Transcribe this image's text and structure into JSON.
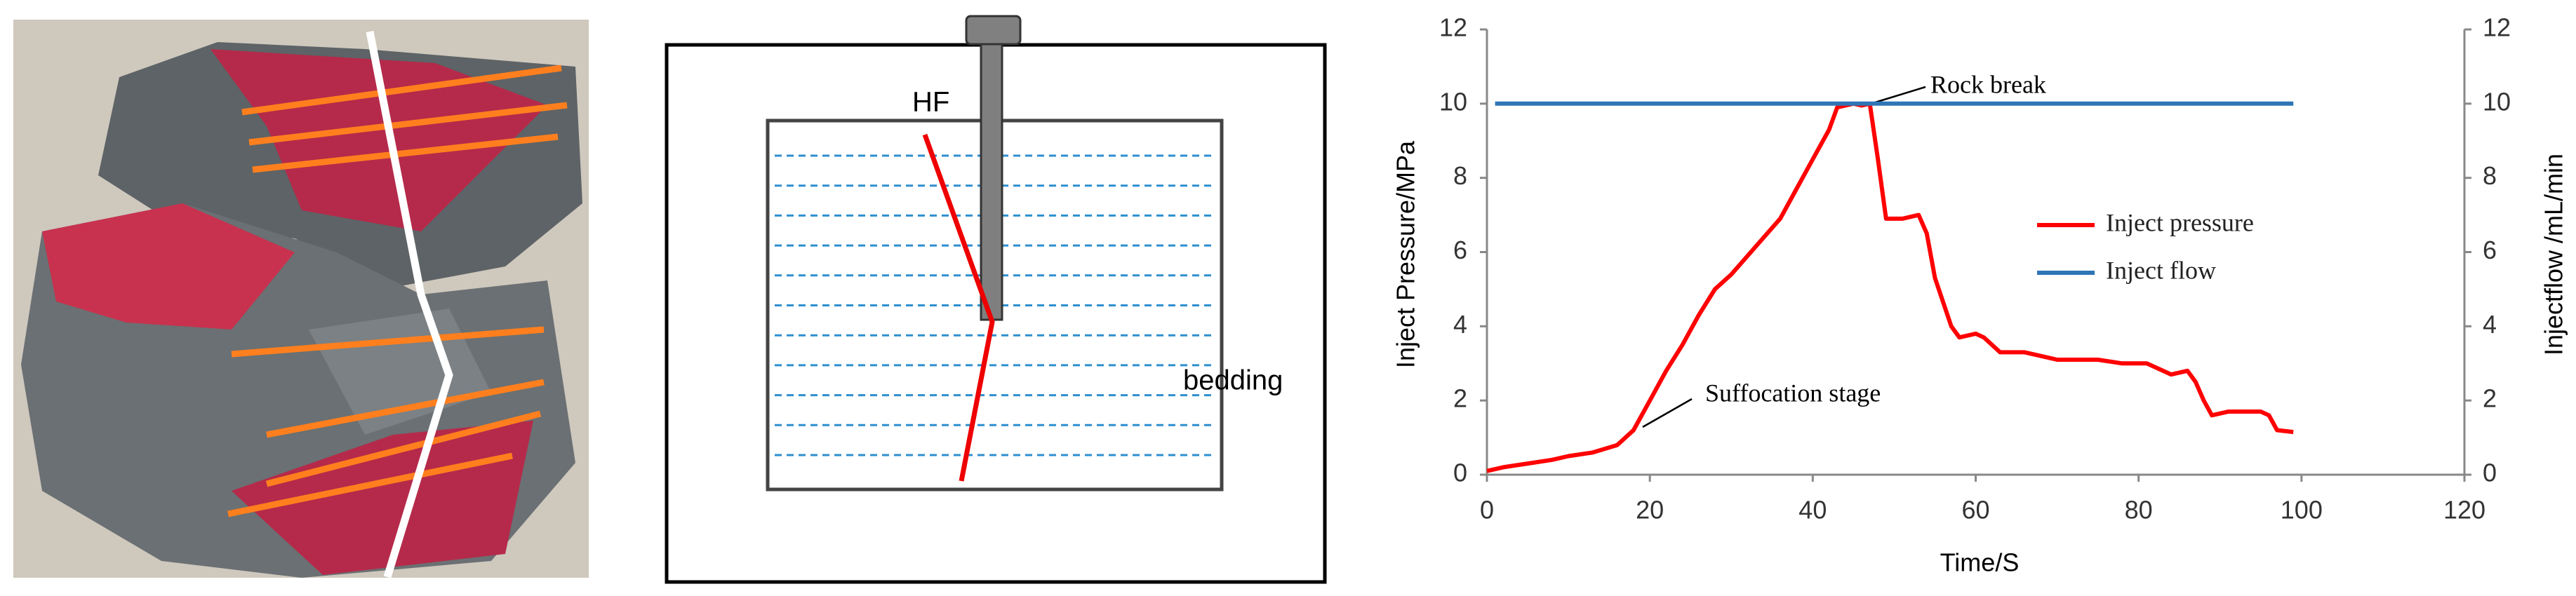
{
  "diagram": {
    "labels": [
      "HF",
      "bedding"
    ]
  },
  "chart_data": {
    "type": "line",
    "x_label": "Time/S",
    "y_label": "Inject Pressure/MPa",
    "y2_label": "Injectflow /mL/min",
    "annotations": [
      "Rock break",
      "Suffocation stage"
    ],
    "xlim": [
      0,
      120
    ],
    "xticks": [
      0,
      20,
      40,
      60,
      80,
      100,
      120
    ],
    "ylim": [
      0,
      12
    ],
    "yticks": [
      0,
      2,
      4,
      6,
      8,
      10,
      12
    ],
    "y2lim": [
      0,
      12
    ],
    "y2ticks": [
      0,
      2,
      4,
      6,
      8,
      10,
      12
    ],
    "legend": "right",
    "series": [
      {
        "name": "Inject pressure",
        "color": "#ff0000",
        "x": [
          0,
          2,
          5,
          8,
          10,
          13,
          16,
          18,
          20,
          22,
          24,
          26,
          28,
          30,
          32,
          34,
          36,
          38,
          40,
          42,
          43,
          45,
          46,
          47,
          48,
          49,
          51,
          53,
          54,
          55,
          57,
          58,
          60,
          61,
          63,
          66,
          68,
          70,
          75,
          78,
          81,
          82,
          84,
          86,
          87,
          88,
          89,
          91,
          95,
          96,
          97,
          99
        ],
        "values": [
          0.1,
          0.2,
          0.3,
          0.4,
          0.5,
          0.6,
          0.8,
          1.2,
          2.0,
          2.8,
          3.5,
          4.3,
          5.0,
          5.4,
          5.9,
          6.4,
          6.9,
          7.7,
          8.5,
          9.3,
          9.9,
          10.0,
          9.95,
          10.0,
          8.5,
          6.9,
          6.9,
          7.0,
          6.5,
          5.3,
          4.0,
          3.7,
          3.8,
          3.7,
          3.3,
          3.3,
          3.2,
          3.1,
          3.1,
          3.0,
          3.0,
          2.9,
          2.7,
          2.8,
          2.5,
          2.0,
          1.6,
          1.7,
          1.7,
          1.6,
          1.2,
          1.15
        ]
      },
      {
        "name": "Inject flow",
        "color": "#2e75b6",
        "axis": "y2",
        "x": [
          1,
          99
        ],
        "values": [
          10,
          10
        ]
      }
    ]
  }
}
